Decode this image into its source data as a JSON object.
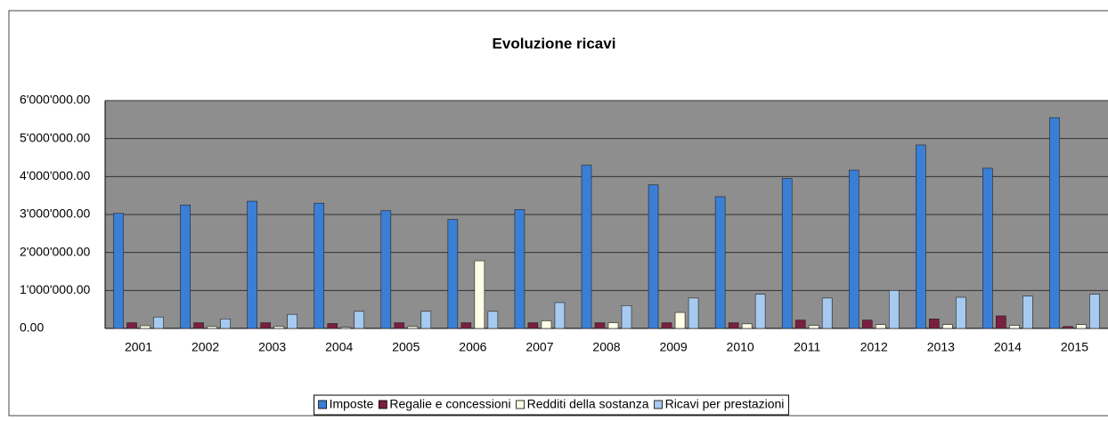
{
  "chart_data": {
    "type": "bar",
    "title": "Evoluzione ricavi",
    "categories": [
      "2001",
      "2002",
      "2003",
      "2004",
      "2005",
      "2006",
      "2007",
      "2008",
      "2009",
      "2010",
      "2011",
      "2012",
      "2013",
      "2014",
      "2015"
    ],
    "series": [
      {
        "name": "Imposte",
        "color": "#3a7fd5",
        "values": [
          3030000,
          3250000,
          3350000,
          3300000,
          3100000,
          2870000,
          3130000,
          4300000,
          3780000,
          3470000,
          3950000,
          4170000,
          4830000,
          4220000,
          5550000
        ]
      },
      {
        "name": "Regalie e concessioni",
        "color": "#7a1f3f",
        "values": [
          150000,
          150000,
          150000,
          130000,
          150000,
          150000,
          150000,
          150000,
          150000,
          150000,
          220000,
          220000,
          250000,
          330000,
          50000
        ]
      },
      {
        "name": "Redditi della sostanza",
        "color": "#ffffe8",
        "values": [
          70000,
          50000,
          50000,
          30000,
          50000,
          1780000,
          200000,
          150000,
          420000,
          120000,
          80000,
          100000,
          100000,
          80000,
          100000
        ]
      },
      {
        "name": "Ricavi per prestazioni",
        "color": "#a6caf0",
        "values": [
          300000,
          250000,
          370000,
          450000,
          450000,
          450000,
          680000,
          600000,
          800000,
          900000,
          800000,
          1000000,
          820000,
          850000,
          900000
        ]
      }
    ],
    "ylim": [
      0,
      6000000
    ],
    "yticks": [
      {
        "value": 0,
        "label": "0.00"
      },
      {
        "value": 1000000,
        "label": "1'000'000.00"
      },
      {
        "value": 2000000,
        "label": "2'000'000.00"
      },
      {
        "value": 3000000,
        "label": "3'000'000.00"
      },
      {
        "value": 4000000,
        "label": "4'000'000.00"
      },
      {
        "value": 5000000,
        "label": "5'000'000.00"
      },
      {
        "value": 6000000,
        "label": "6'000'000.00"
      }
    ],
    "grid": true,
    "legend": "bottom"
  }
}
